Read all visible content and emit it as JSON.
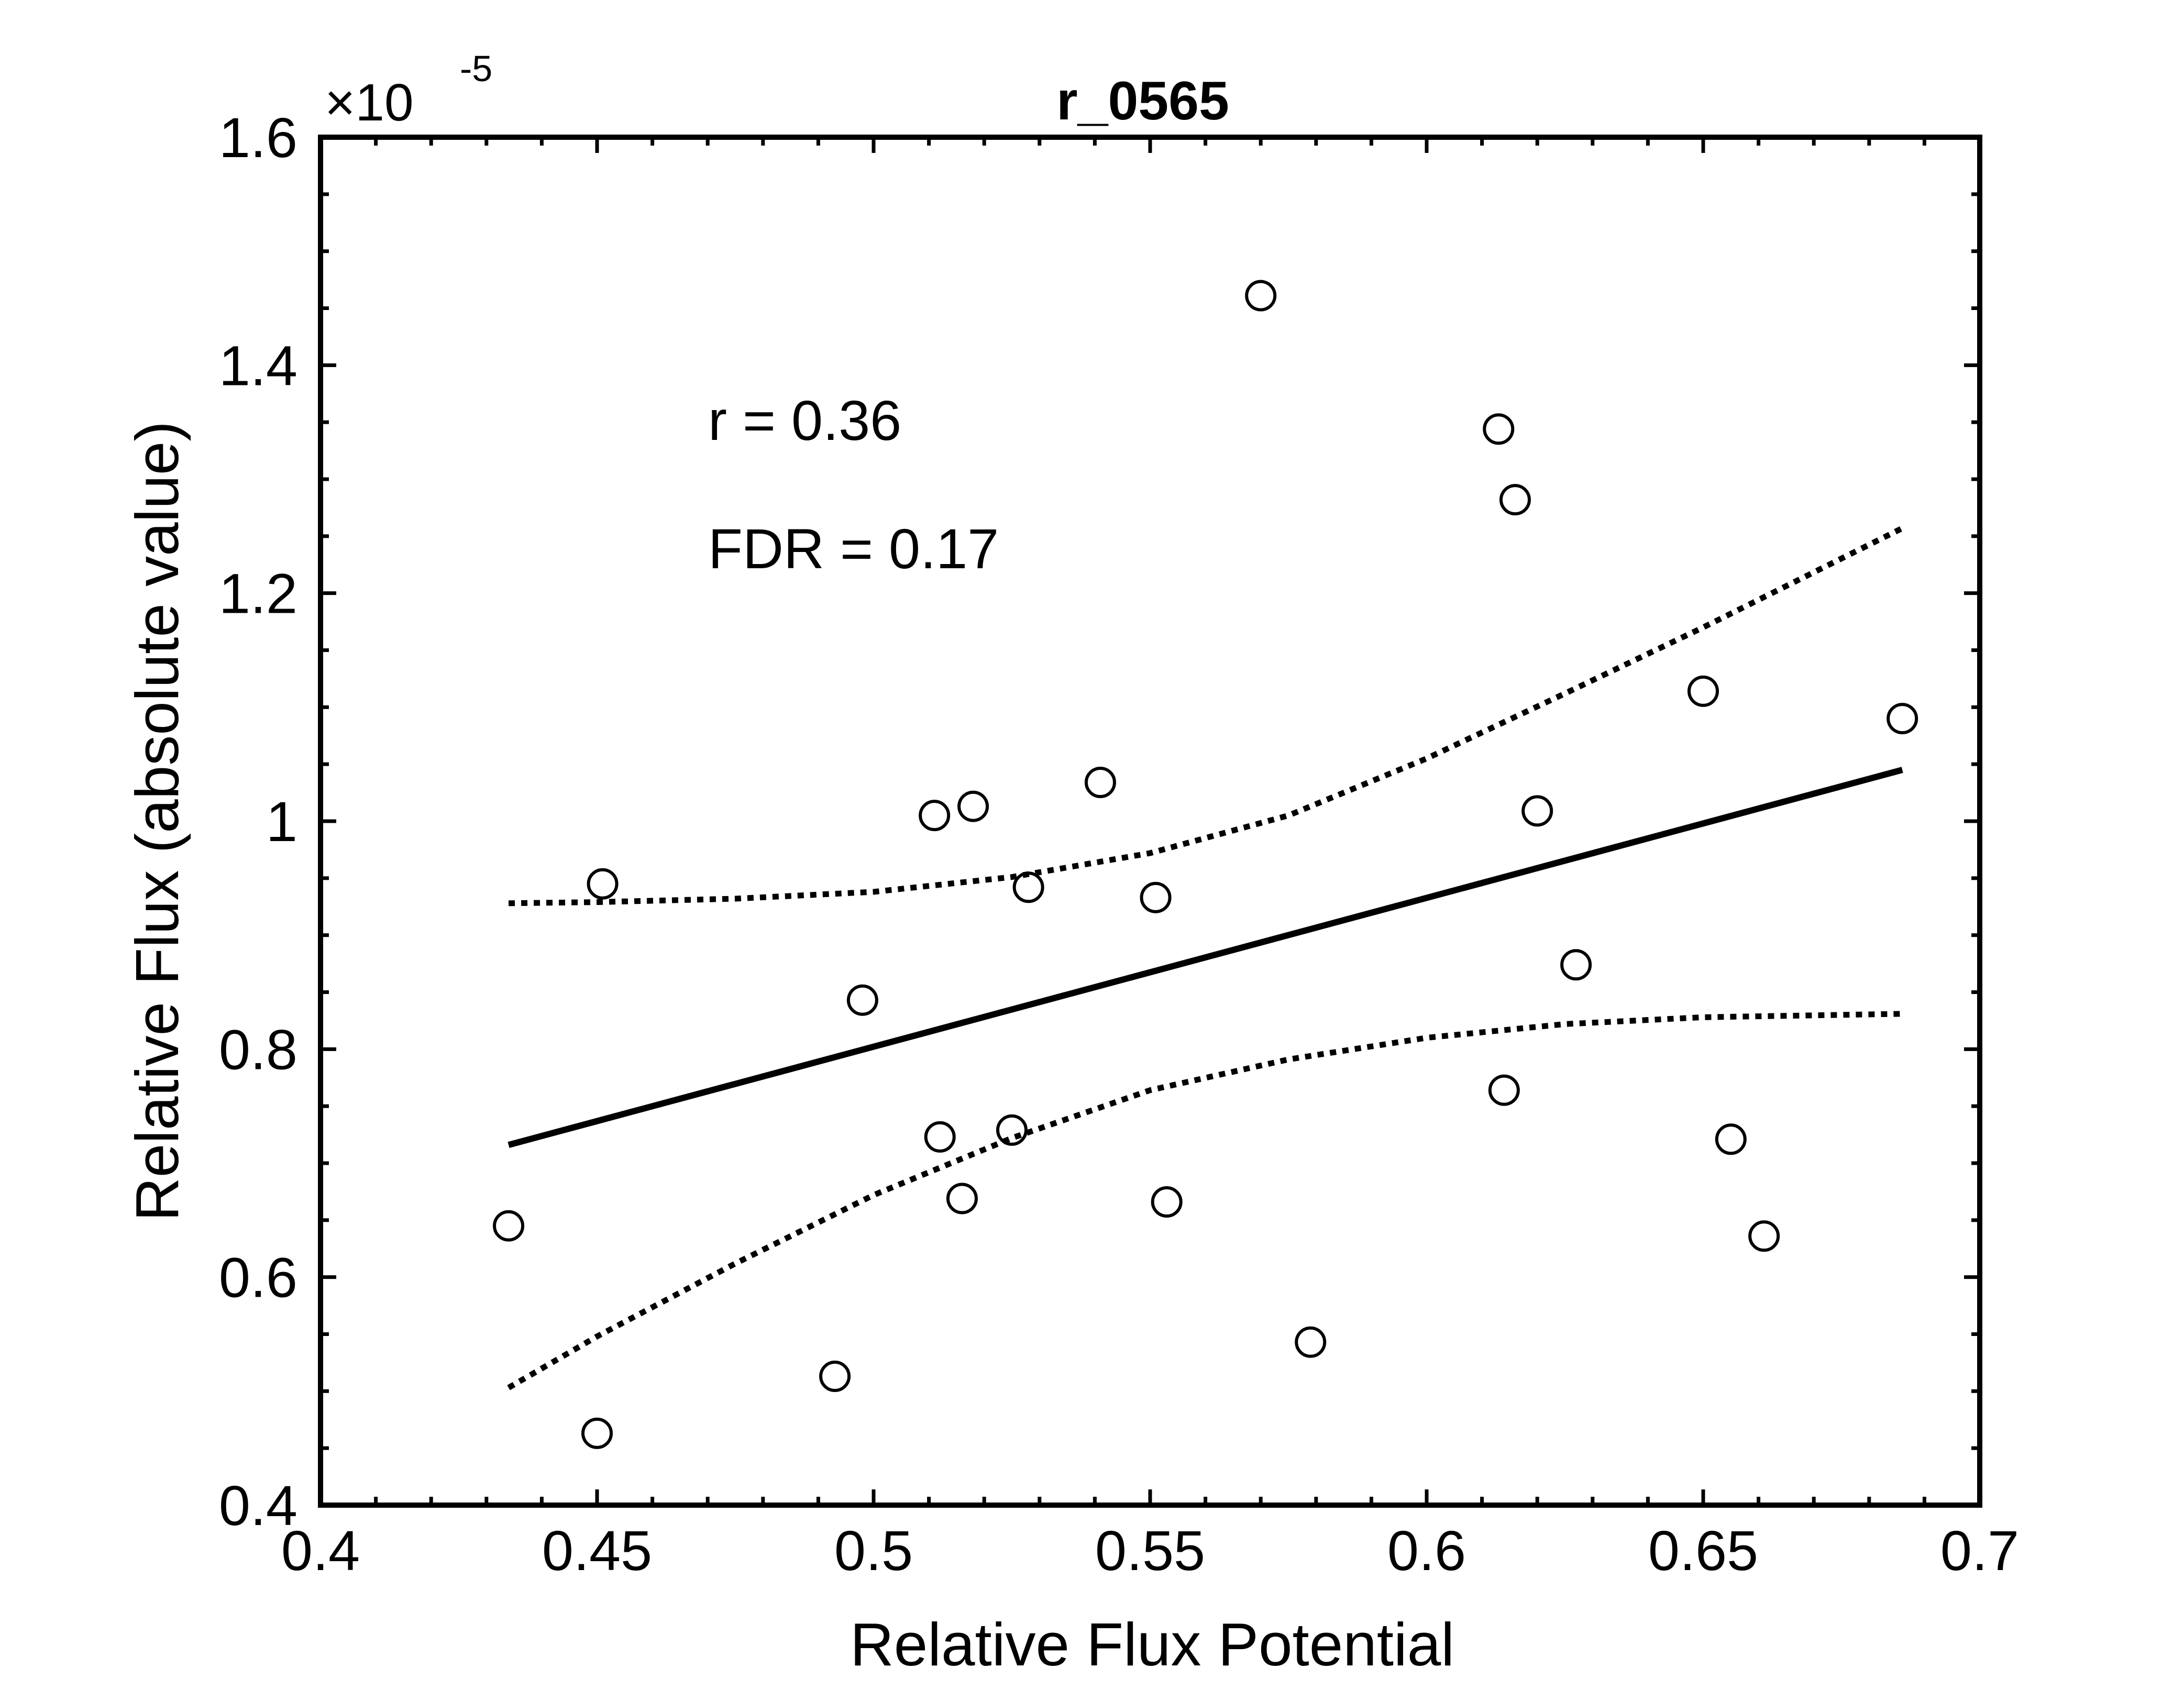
{
  "chart_data": {
    "type": "scatter",
    "title": "r_0565",
    "xlabel": "Relative Flux Potential",
    "ylabel": "Relative Flux (absolute value)",
    "xlim": [
      0.4,
      0.7
    ],
    "ylim": [
      0.4,
      1.6
    ],
    "y_multiplier": "×10",
    "y_multiplier_exponent": "-5",
    "xticks": [
      0.4,
      0.45,
      0.5,
      0.55,
      0.6,
      0.65,
      0.7
    ],
    "xtick_labels": [
      "0.4",
      "0.45",
      "0.5",
      "0.55",
      "0.6",
      "0.65",
      "0.7"
    ],
    "yticks": [
      0.4,
      0.6,
      0.8,
      1.0,
      1.2,
      1.4,
      1.6
    ],
    "ytick_labels": [
      "0.4",
      "0.6",
      "0.8",
      "1",
      "1.2",
      "1.4",
      "1.6"
    ],
    "grid": false,
    "annotations": [
      "r = 0.36",
      "FDR = 0.17"
    ],
    "points": [
      {
        "x": 0.434,
        "y": 0.645
      },
      {
        "x": 0.451,
        "y": 0.945
      },
      {
        "x": 0.45,
        "y": 0.463
      },
      {
        "x": 0.493,
        "y": 0.513
      },
      {
        "x": 0.498,
        "y": 0.843
      },
      {
        "x": 0.511,
        "y": 1.005
      },
      {
        "x": 0.512,
        "y": 0.723
      },
      {
        "x": 0.516,
        "y": 0.669
      },
      {
        "x": 0.518,
        "y": 1.013
      },
      {
        "x": 0.525,
        "y": 0.729
      },
      {
        "x": 0.528,
        "y": 0.942
      },
      {
        "x": 0.541,
        "y": 1.034
      },
      {
        "x": 0.551,
        "y": 0.933
      },
      {
        "x": 0.553,
        "y": 0.666
      },
      {
        "x": 0.57,
        "y": 1.461
      },
      {
        "x": 0.579,
        "y": 0.543
      },
      {
        "x": 0.613,
        "y": 1.344
      },
      {
        "x": 0.614,
        "y": 0.764
      },
      {
        "x": 0.616,
        "y": 1.282
      },
      {
        "x": 0.62,
        "y": 1.009
      },
      {
        "x": 0.627,
        "y": 0.874
      },
      {
        "x": 0.65,
        "y": 1.114
      },
      {
        "x": 0.655,
        "y": 0.721
      },
      {
        "x": 0.661,
        "y": 0.636
      },
      {
        "x": 0.686,
        "y": 1.09
      }
    ],
    "fit_line": {
      "x": [
        0.434,
        0.686
      ],
      "y": [
        0.716,
        1.045
      ]
    },
    "confidence_upper": {
      "x": [
        0.434,
        0.45,
        0.475,
        0.5,
        0.525,
        0.55,
        0.575,
        0.6,
        0.625,
        0.65,
        0.686
      ],
      "y": [
        0.928,
        0.929,
        0.932,
        0.938,
        0.951,
        0.972,
        1.005,
        1.055,
        1.112,
        1.17,
        1.257
      ]
    },
    "confidence_lower": {
      "x": [
        0.434,
        0.45,
        0.475,
        0.5,
        0.525,
        0.55,
        0.575,
        0.6,
        0.625,
        0.65,
        0.686
      ],
      "y": [
        0.503,
        0.548,
        0.612,
        0.672,
        0.722,
        0.764,
        0.791,
        0.81,
        0.822,
        0.828,
        0.831
      ]
    }
  }
}
